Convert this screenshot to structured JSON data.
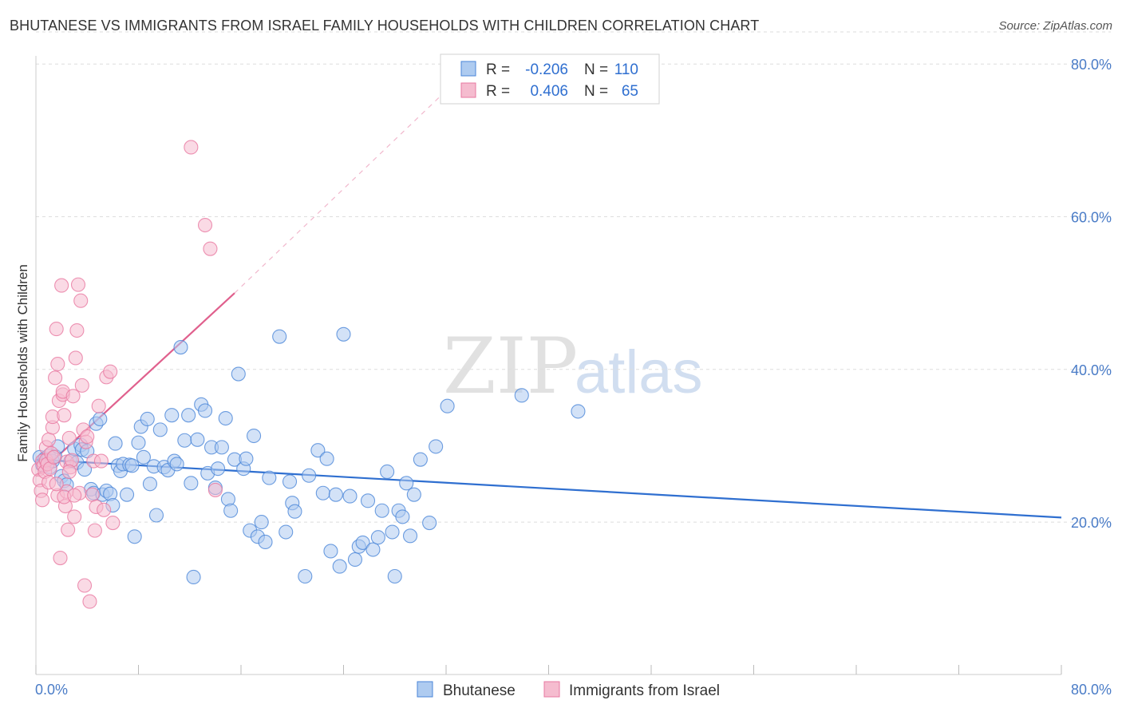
{
  "title": "BHUTANESE VS IMMIGRANTS FROM ISRAEL FAMILY HOUSEHOLDS WITH CHILDREN CORRELATION CHART",
  "source": "Source: ZipAtlas.com",
  "watermark": {
    "zip": "ZIP",
    "atlas": "atlas"
  },
  "colors": {
    "blue": "#4a86d8",
    "blue_fill": "#aecbf0",
    "blue_line": "#2f6fd0",
    "pink": "#e878a0",
    "pink_fill": "#f5bccf",
    "pink_line": "#e0608d",
    "tick_text": "#4a7cc7",
    "grid": "#dddddd"
  },
  "legend_top": [
    {
      "r_label": "R =",
      "r_value": "-0.206",
      "n_label": "N =",
      "n_value": "110",
      "color": "blue"
    },
    {
      "r_label": "R =",
      "r_value": "0.406",
      "n_label": "N =",
      "n_value": "65",
      "color": "pink"
    }
  ],
  "chart_data": {
    "type": "scatter",
    "xlabel": "",
    "ylabel": "Family Households with Children",
    "xlim": [
      0,
      80
    ],
    "ylim": [
      0,
      85
    ],
    "x_tick_labels": [
      "0.0%",
      "80.0%"
    ],
    "y_ticks": [
      20,
      40,
      60,
      80
    ],
    "y_tick_labels": [
      "20.0%",
      "40.0%",
      "60.0%",
      "80.0%"
    ],
    "grid": true,
    "legend_position": "bottom-center",
    "series": [
      {
        "name": "Bhutanese",
        "color": "blue",
        "trend": {
          "x": [
            0,
            80
          ],
          "y": [
            28.2,
            20.6
          ],
          "dashed_extension": false
        },
        "points": [
          [
            0.3,
            28.5
          ],
          [
            0.5,
            27.5
          ],
          [
            0.7,
            28.3
          ],
          [
            0.8,
            27.9
          ],
          [
            1.0,
            28.7
          ],
          [
            1.1,
            27.2
          ],
          [
            1.3,
            28.0
          ],
          [
            1.5,
            28.6
          ],
          [
            1.7,
            29.9
          ],
          [
            2.0,
            26.0
          ],
          [
            2.2,
            25.4
          ],
          [
            2.4,
            24.9
          ],
          [
            2.7,
            28.0
          ],
          [
            3.0,
            29.6
          ],
          [
            3.2,
            27.8
          ],
          [
            3.5,
            30.1
          ],
          [
            3.6,
            29.5
          ],
          [
            3.8,
            26.9
          ],
          [
            4.0,
            29.3
          ],
          [
            4.3,
            24.3
          ],
          [
            4.5,
            23.8
          ],
          [
            4.7,
            32.9
          ],
          [
            5.0,
            33.5
          ],
          [
            5.2,
            23.6
          ],
          [
            5.5,
            24.1
          ],
          [
            5.8,
            23.7
          ],
          [
            6.0,
            22.2
          ],
          [
            6.2,
            30.3
          ],
          [
            6.4,
            27.4
          ],
          [
            6.6,
            26.7
          ],
          [
            6.8,
            27.6
          ],
          [
            7.1,
            23.6
          ],
          [
            7.3,
            27.5
          ],
          [
            7.5,
            27.4
          ],
          [
            7.7,
            18.1
          ],
          [
            8.0,
            30.4
          ],
          [
            8.2,
            32.5
          ],
          [
            8.4,
            28.5
          ],
          [
            8.7,
            33.5
          ],
          [
            8.9,
            25.0
          ],
          [
            9.2,
            27.3
          ],
          [
            9.4,
            20.9
          ],
          [
            9.7,
            32.1
          ],
          [
            10.0,
            27.2
          ],
          [
            10.3,
            26.8
          ],
          [
            10.6,
            34.0
          ],
          [
            10.8,
            28.0
          ],
          [
            11.0,
            27.6
          ],
          [
            11.3,
            42.9
          ],
          [
            11.6,
            30.7
          ],
          [
            11.9,
            34.0
          ],
          [
            12.1,
            25.1
          ],
          [
            12.3,
            12.8
          ],
          [
            12.6,
            30.8
          ],
          [
            12.9,
            35.4
          ],
          [
            13.2,
            34.6
          ],
          [
            13.4,
            26.4
          ],
          [
            13.7,
            29.8
          ],
          [
            14.0,
            24.5
          ],
          [
            14.2,
            27.0
          ],
          [
            14.5,
            29.8
          ],
          [
            14.8,
            33.6
          ],
          [
            15.0,
            23.0
          ],
          [
            15.2,
            21.5
          ],
          [
            15.5,
            28.2
          ],
          [
            15.8,
            39.4
          ],
          [
            16.2,
            27.0
          ],
          [
            16.4,
            28.3
          ],
          [
            16.7,
            18.9
          ],
          [
            17.0,
            31.3
          ],
          [
            17.3,
            18.1
          ],
          [
            17.6,
            20.0
          ],
          [
            17.9,
            17.4
          ],
          [
            18.2,
            25.8
          ],
          [
            19.0,
            44.3
          ],
          [
            19.5,
            18.7
          ],
          [
            19.8,
            25.3
          ],
          [
            20.0,
            22.5
          ],
          [
            20.2,
            21.4
          ],
          [
            21.0,
            12.9
          ],
          [
            21.3,
            26.1
          ],
          [
            22.0,
            29.4
          ],
          [
            22.4,
            23.8
          ],
          [
            22.7,
            28.3
          ],
          [
            23.0,
            16.2
          ],
          [
            23.4,
            23.6
          ],
          [
            23.7,
            14.2
          ],
          [
            24.0,
            44.6
          ],
          [
            24.5,
            23.4
          ],
          [
            24.9,
            15.1
          ],
          [
            25.2,
            16.8
          ],
          [
            25.5,
            17.3
          ],
          [
            25.9,
            22.8
          ],
          [
            26.3,
            16.4
          ],
          [
            26.7,
            18.0
          ],
          [
            27.0,
            21.5
          ],
          [
            27.4,
            26.6
          ],
          [
            27.8,
            18.7
          ],
          [
            28.0,
            12.9
          ],
          [
            28.3,
            21.5
          ],
          [
            28.6,
            20.7
          ],
          [
            28.9,
            25.1
          ],
          [
            29.2,
            18.2
          ],
          [
            29.5,
            23.6
          ],
          [
            30.0,
            28.2
          ],
          [
            30.7,
            19.9
          ],
          [
            31.2,
            29.9
          ],
          [
            32.1,
            35.2
          ],
          [
            37.9,
            36.6
          ],
          [
            42.3,
            34.5
          ]
        ]
      },
      {
        "name": "Immigrants from Israel",
        "color": "pink",
        "trend": {
          "x": [
            0,
            15.5
          ],
          "y": [
            26.0,
            50.0
          ],
          "dashed_x": [
            15.5,
            32
          ],
          "dashed_y": [
            50.0,
            76.5
          ]
        },
        "points": [
          [
            0.2,
            26.9
          ],
          [
            0.3,
            25.5
          ],
          [
            0.4,
            24.1
          ],
          [
            0.5,
            28.0
          ],
          [
            0.5,
            22.9
          ],
          [
            0.6,
            27.4
          ],
          [
            0.7,
            26.6
          ],
          [
            0.8,
            28.1
          ],
          [
            0.8,
            29.8
          ],
          [
            0.9,
            27.6
          ],
          [
            1.0,
            25.2
          ],
          [
            1.0,
            30.8
          ],
          [
            1.1,
            27.0
          ],
          [
            1.2,
            29.0
          ],
          [
            1.3,
            32.4
          ],
          [
            1.3,
            33.8
          ],
          [
            1.4,
            28.5
          ],
          [
            1.5,
            38.9
          ],
          [
            1.6,
            45.3
          ],
          [
            1.7,
            40.7
          ],
          [
            1.7,
            23.5
          ],
          [
            1.8,
            35.9
          ],
          [
            1.9,
            15.3
          ],
          [
            2.0,
            51.0
          ],
          [
            2.1,
            36.7
          ],
          [
            2.1,
            37.1
          ],
          [
            2.2,
            34.0
          ],
          [
            2.3,
            22.1
          ],
          [
            2.4,
            27.9
          ],
          [
            2.4,
            24.0
          ],
          [
            2.5,
            19.0
          ],
          [
            2.6,
            31.0
          ],
          [
            2.7,
            27.2
          ],
          [
            2.8,
            28.1
          ],
          [
            2.9,
            36.5
          ],
          [
            3.0,
            20.7
          ],
          [
            3.1,
            41.5
          ],
          [
            3.2,
            45.1
          ],
          [
            3.3,
            51.1
          ],
          [
            3.4,
            23.8
          ],
          [
            3.5,
            49.0
          ],
          [
            3.6,
            37.9
          ],
          [
            3.7,
            32.1
          ],
          [
            3.8,
            11.7
          ],
          [
            3.9,
            30.5
          ],
          [
            4.0,
            31.2
          ],
          [
            4.2,
            9.6
          ],
          [
            4.4,
            23.6
          ],
          [
            4.5,
            28.0
          ],
          [
            4.6,
            18.9
          ],
          [
            4.7,
            22.0
          ],
          [
            4.9,
            35.2
          ],
          [
            5.1,
            28.0
          ],
          [
            5.3,
            21.6
          ],
          [
            5.5,
            39.0
          ],
          [
            5.8,
            39.7
          ],
          [
            6.0,
            19.9
          ],
          [
            12.1,
            69.1
          ],
          [
            13.2,
            58.9
          ],
          [
            13.6,
            55.8
          ],
          [
            14.0,
            24.2
          ],
          [
            2.2,
            23.3
          ],
          [
            1.6,
            25.0
          ],
          [
            3.0,
            23.5
          ],
          [
            2.6,
            26.6
          ]
        ]
      }
    ]
  }
}
